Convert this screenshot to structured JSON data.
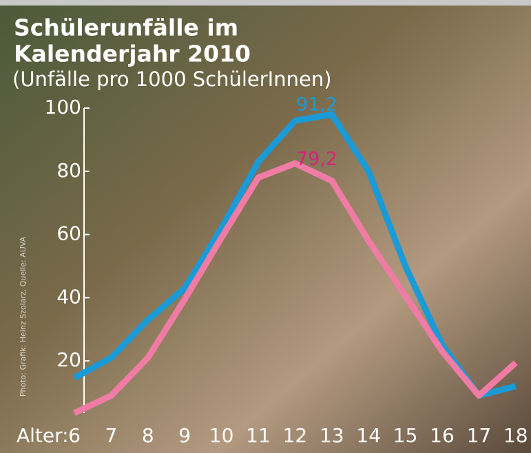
{
  "chart_data": {
    "type": "line",
    "title": [
      "Schülerunfälle im",
      "Kalenderjahr 2010"
    ],
    "subtitle": "(Unfälle pro 1000 SchülerInnen)",
    "x_label": "Alter:",
    "credit": "Photo: Grafik: Heinz Szolarz, Quelle: AUVA",
    "categories": [
      "6",
      "7",
      "8",
      "9",
      "10",
      "11",
      "12",
      "13",
      "14",
      "15",
      "16",
      "17",
      "18"
    ],
    "series": [
      {
        "color": "#1a9ad6",
        "values": [
          14.6,
          21,
          33,
          43,
          62,
          83,
          96,
          98,
          80,
          50,
          25,
          9,
          12
        ]
      },
      {
        "color": "#f07ca5",
        "values": [
          3.5,
          9,
          21,
          39.5,
          59,
          78,
          82.5,
          77,
          58,
          40.6,
          23,
          9,
          19.4
        ]
      }
    ],
    "annotations": [
      {
        "text": "91,2",
        "color": "#1a9ad6"
      },
      {
        "text": "79,2",
        "color": "#d6237a"
      }
    ],
    "ylim": [
      0,
      100
    ],
    "yticks": [
      20,
      40,
      60,
      80,
      100
    ]
  }
}
